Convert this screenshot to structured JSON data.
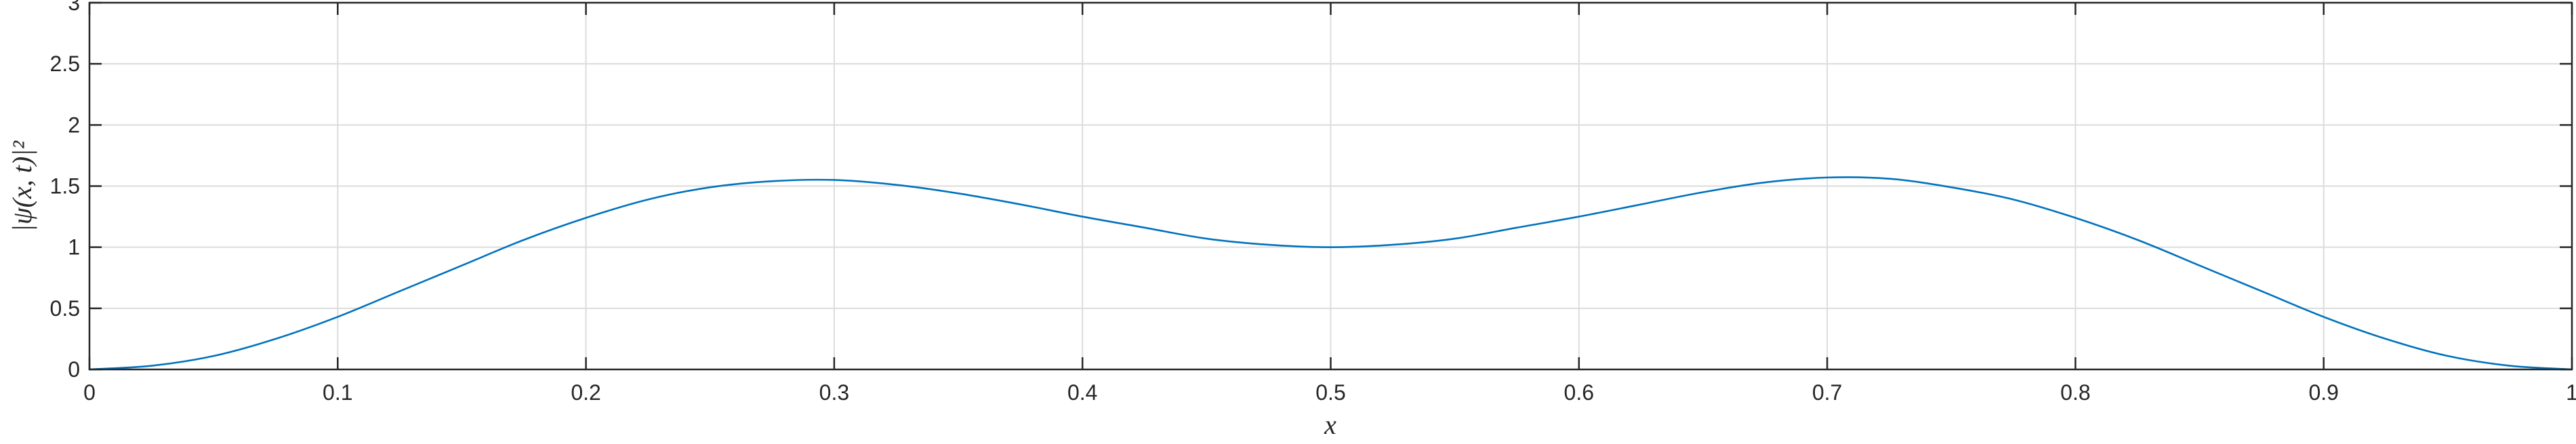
{
  "chart_data": {
    "type": "line",
    "title": "",
    "xlabel": "x",
    "ylabel": "|ψ(x, t)|²",
    "xlim": [
      0,
      1
    ],
    "ylim": [
      0,
      3
    ],
    "grid": true,
    "box": true,
    "x_ticks": [
      "0",
      "0.1",
      "0.2",
      "0.3",
      "0.4",
      "0.5",
      "0.6",
      "0.7",
      "0.8",
      "0.9",
      "1"
    ],
    "y_ticks": [
      "0",
      "0.5",
      "1",
      "1.5",
      "2",
      "2.5",
      "3"
    ],
    "series": [
      {
        "color": "#0072BD",
        "x": [
          0,
          0.025,
          0.05,
          0.075,
          0.1,
          0.125,
          0.15,
          0.175,
          0.2,
          0.225,
          0.25,
          0.275,
          0.3,
          0.325,
          0.35,
          0.375,
          0.4,
          0.425,
          0.45,
          0.475,
          0.5,
          0.525,
          0.55,
          0.575,
          0.6,
          0.625,
          0.65,
          0.675,
          0.7,
          0.725,
          0.75,
          0.775,
          0.8,
          0.825,
          0.85,
          0.875,
          0.9,
          0.925,
          0.95,
          0.975,
          1
        ],
        "y": [
          0,
          0.03,
          0.11,
          0.25,
          0.43,
          0.64,
          0.85,
          1.06,
          1.24,
          1.39,
          1.49,
          1.54,
          1.55,
          1.51,
          1.44,
          1.35,
          1.25,
          1.16,
          1.07,
          1.02,
          1.0,
          1.02,
          1.07,
          1.16,
          1.25,
          1.35,
          1.45,
          1.53,
          1.57,
          1.56,
          1.49,
          1.39,
          1.24,
          1.06,
          0.85,
          0.64,
          0.43,
          0.25,
          0.11,
          0.03,
          0
        ]
      }
    ]
  }
}
